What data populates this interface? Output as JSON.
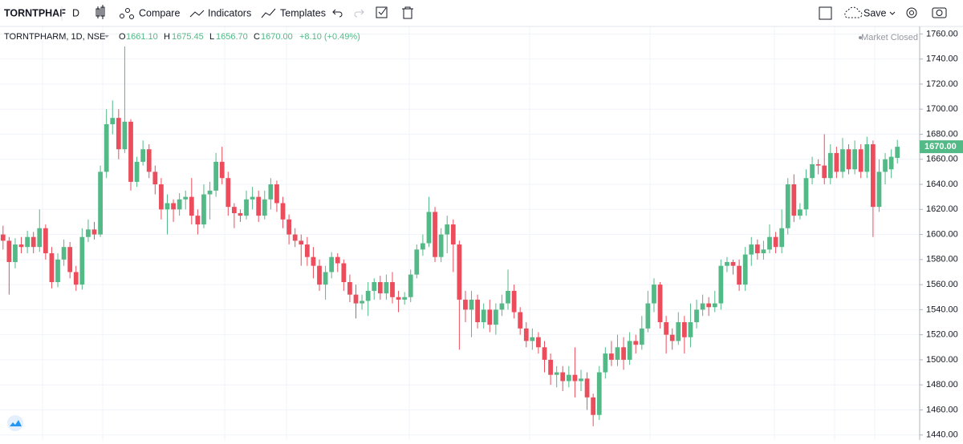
{
  "toolbar": {
    "symbol": "TORNTPHAF",
    "interval": "D",
    "compare": "Compare",
    "indicators": "Indicators",
    "templates": "Templates",
    "save": "Save"
  },
  "chart_data": {
    "type": "candlestick",
    "legend": {
      "title": "TORNTPHARM, 1D, NSE",
      "open_key": "O",
      "open": "1661.10",
      "high_key": "H",
      "high": "1675.45",
      "low_key": "L",
      "low": "1656.70",
      "close_key": "C",
      "close": "1670.00",
      "change": "+8.10 (+0.49%)"
    },
    "status": "Market Closed",
    "up_color": "#53b987",
    "down_color": "#eb4d5c",
    "grid": true,
    "ylim": [
      1436,
      1766
    ],
    "yticks": [
      {
        "value": 1440,
        "label": "1440.00"
      },
      {
        "value": 1460,
        "label": "1460.00"
      },
      {
        "value": 1480,
        "label": "1480.00"
      },
      {
        "value": 1500,
        "label": "1500.00"
      },
      {
        "value": 1520,
        "label": "1520.00"
      },
      {
        "value": 1540,
        "label": "1540.00"
      },
      {
        "value": 1560,
        "label": "1560.00"
      },
      {
        "value": 1580,
        "label": "1580.00"
      },
      {
        "value": 1600,
        "label": "1600.00"
      },
      {
        "value": 1620,
        "label": "1620.00"
      },
      {
        "value": 1640,
        "label": "1640.00"
      },
      {
        "value": 1660,
        "label": "1660.00"
      },
      {
        "value": 1680,
        "label": "1680.00"
      },
      {
        "value": 1700,
        "label": "1700.00"
      },
      {
        "value": 1720,
        "label": "1720.00"
      },
      {
        "value": 1740,
        "label": "1740.00"
      },
      {
        "value": 1760,
        "label": "1760.00"
      }
    ],
    "open": [
      1600,
      1595,
      1578,
      1592,
      1590,
      1598,
      1590,
      1605,
      1585,
      1562,
      1580,
      1590,
      1570,
      1560,
      1598,
      1604,
      1600,
      1650,
      1688,
      1693,
      1668,
      1690,
      1642,
      1658,
      1668,
      1650,
      1640,
      1620,
      1625,
      1620,
      1628,
      1630,
      1615,
      1608,
      1632,
      1635,
      1658,
      1645,
      1622,
      1617,
      1615,
      1628,
      1630,
      1615,
      1628,
      1640,
      1625,
      1612,
      1600,
      1595,
      1592,
      1582,
      1575,
      1560,
      1570,
      1582,
      1577,
      1562,
      1552,
      1545,
      1547,
      1555,
      1562,
      1553,
      1562,
      1550,
      1548,
      1550,
      1568,
      1588,
      1593,
      1618,
      1582,
      1600,
      1608,
      1592,
      1548,
      1540,
      1548,
      1530,
      1540,
      1528,
      1540,
      1545,
      1555,
      1538,
      1525,
      1515,
      1518,
      1510,
      1500,
      1488,
      1490,
      1483,
      1488,
      1483,
      1485,
      1470,
      1456,
      1490,
      1505,
      1500,
      1510,
      1500,
      1515,
      1512,
      1525,
      1545,
      1560,
      1530,
      1520,
      1515,
      1530,
      1518,
      1530,
      1540,
      1545,
      1542,
      1545,
      1575,
      1578,
      1575,
      1560,
      1584,
      1592,
      1585,
      1588,
      1598,
      1590,
      1605,
      1640,
      1615,
      1620,
      1645,
      1656,
      1655,
      1645,
      1665,
      1650,
      1668,
      1652,
      1668,
      1650,
      1672,
      1622,
      1650,
      1652,
      1661.1
    ],
    "high": [
      1607,
      1598,
      1597,
      1598,
      1603,
      1602,
      1620,
      1608,
      1590,
      1585,
      1596,
      1594,
      1575,
      1605,
      1612,
      1610,
      1655,
      1700,
      1707,
      1700,
      1750,
      1692,
      1662,
      1675,
      1672,
      1655,
      1645,
      1632,
      1628,
      1633,
      1635,
      1645,
      1620,
      1640,
      1642,
      1665,
      1670,
      1650,
      1625,
      1620,
      1635,
      1638,
      1635,
      1635,
      1645,
      1643,
      1630,
      1616,
      1605,
      1600,
      1598,
      1590,
      1580,
      1575,
      1586,
      1585,
      1580,
      1568,
      1560,
      1552,
      1562,
      1565,
      1567,
      1568,
      1570,
      1555,
      1554,
      1572,
      1592,
      1600,
      1630,
      1622,
      1605,
      1615,
      1612,
      1595,
      1555,
      1555,
      1552,
      1545,
      1548,
      1545,
      1552,
      1572,
      1560,
      1542,
      1530,
      1525,
      1522,
      1515,
      1505,
      1495,
      1495,
      1495,
      1510,
      1492,
      1490,
      1473,
      1495,
      1510,
      1515,
      1520,
      1518,
      1522,
      1520,
      1535,
      1555,
      1565,
      1562,
      1535,
      1525,
      1538,
      1535,
      1545,
      1548,
      1552,
      1550,
      1555,
      1580,
      1582,
      1580,
      1580,
      1590,
      1598,
      1596,
      1595,
      1608,
      1602,
      1620,
      1645,
      1648,
      1625,
      1652,
      1662,
      1660,
      1680,
      1672,
      1670,
      1677,
      1672,
      1675,
      1672,
      1678,
      1675,
      1660,
      1665,
      1668,
      1675.45
    ],
    "low": [
      1588,
      1552,
      1573,
      1585,
      1585,
      1585,
      1586,
      1580,
      1557,
      1558,
      1575,
      1565,
      1555,
      1556,
      1594,
      1596,
      1598,
      1645,
      1680,
      1660,
      1665,
      1635,
      1638,
      1655,
      1645,
      1632,
      1612,
      1600,
      1610,
      1615,
      1620,
      1608,
      1600,
      1605,
      1612,
      1630,
      1640,
      1615,
      1605,
      1610,
      1612,
      1620,
      1610,
      1612,
      1620,
      1618,
      1605,
      1592,
      1590,
      1575,
      1575,
      1565,
      1555,
      1548,
      1565,
      1570,
      1555,
      1546,
      1533,
      1540,
      1535,
      1548,
      1548,
      1548,
      1545,
      1538,
      1544,
      1546,
      1565,
      1583,
      1590,
      1578,
      1578,
      1585,
      1570,
      1508,
      1530,
      1518,
      1525,
      1525,
      1522,
      1520,
      1535,
      1540,
      1533,
      1520,
      1510,
      1508,
      1505,
      1490,
      1480,
      1478,
      1475,
      1478,
      1470,
      1475,
      1460,
      1447,
      1452,
      1485,
      1495,
      1495,
      1492,
      1496,
      1505,
      1508,
      1522,
      1538,
      1525,
      1505,
      1508,
      1512,
      1505,
      1510,
      1525,
      1535,
      1535,
      1538,
      1540,
      1570,
      1568,
      1555,
      1555,
      1575,
      1580,
      1580,
      1585,
      1585,
      1585,
      1600,
      1610,
      1612,
      1615,
      1640,
      1648,
      1640,
      1640,
      1645,
      1645,
      1648,
      1648,
      1645,
      1645,
      1598,
      1618,
      1640,
      1645,
      1656.7
    ],
    "close": [
      1595,
      1578,
      1592,
      1590,
      1598,
      1590,
      1605,
      1585,
      1562,
      1580,
      1590,
      1570,
      1560,
      1598,
      1604,
      1600,
      1650,
      1688,
      1693,
      1668,
      1690,
      1642,
      1658,
      1668,
      1650,
      1640,
      1620,
      1625,
      1620,
      1628,
      1630,
      1615,
      1608,
      1632,
      1635,
      1658,
      1645,
      1622,
      1617,
      1615,
      1628,
      1630,
      1615,
      1628,
      1640,
      1625,
      1612,
      1600,
      1595,
      1592,
      1582,
      1575,
      1560,
      1570,
      1582,
      1577,
      1562,
      1552,
      1545,
      1547,
      1555,
      1562,
      1553,
      1562,
      1550,
      1548,
      1550,
      1568,
      1588,
      1593,
      1618,
      1582,
      1600,
      1608,
      1592,
      1548,
      1540,
      1548,
      1530,
      1540,
      1528,
      1540,
      1545,
      1555,
      1538,
      1525,
      1515,
      1518,
      1510,
      1500,
      1488,
      1490,
      1483,
      1488,
      1483,
      1485,
      1470,
      1456,
      1490,
      1505,
      1500,
      1510,
      1500,
      1515,
      1512,
      1525,
      1545,
      1560,
      1530,
      1520,
      1515,
      1530,
      1518,
      1530,
      1540,
      1545,
      1542,
      1545,
      1575,
      1578,
      1575,
      1560,
      1584,
      1592,
      1585,
      1588,
      1598,
      1590,
      1605,
      1640,
      1615,
      1620,
      1645,
      1656,
      1655,
      1645,
      1665,
      1650,
      1668,
      1652,
      1668,
      1650,
      1672,
      1622,
      1650,
      1660,
      1662,
      1670
    ]
  }
}
